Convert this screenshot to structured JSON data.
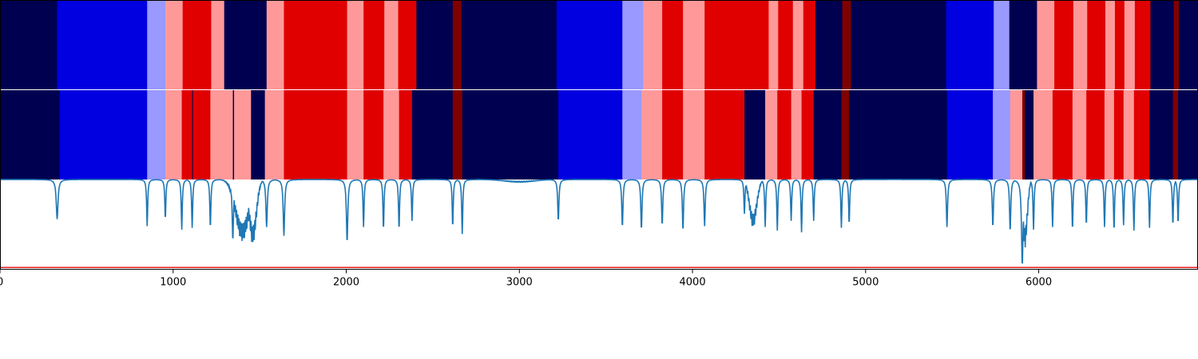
{
  "chart_data": {
    "type": "heatmap",
    "title": "",
    "xlabel": "",
    "ylabel": "",
    "xlim": [
      0,
      6920
    ],
    "grid": false,
    "legend": "none",
    "xticks": [
      0,
      1000,
      2000,
      3000,
      4000,
      5000,
      6000
    ],
    "colors": {
      "0": "#000050",
      "1": "#0000e0",
      "2": "#9999ff",
      "3": "#ff9999",
      "4": "#e00000",
      "5": "#800000"
    },
    "tracks": [
      {
        "segments": [
          [
            0,
            330,
            0
          ],
          [
            330,
            850,
            1
          ],
          [
            850,
            955,
            2
          ],
          [
            955,
            1055,
            3
          ],
          [
            1055,
            1220,
            4
          ],
          [
            1220,
            1295,
            3
          ],
          [
            1295,
            1540,
            0
          ],
          [
            1540,
            1640,
            3
          ],
          [
            1640,
            2005,
            4
          ],
          [
            2005,
            2100,
            3
          ],
          [
            2100,
            2220,
            4
          ],
          [
            2220,
            2300,
            3
          ],
          [
            2300,
            2405,
            4
          ],
          [
            2405,
            2615,
            0
          ],
          [
            2615,
            2665,
            5
          ],
          [
            2665,
            3215,
            0
          ],
          [
            3215,
            3595,
            1
          ],
          [
            3595,
            3715,
            2
          ],
          [
            3715,
            3825,
            3
          ],
          [
            3825,
            3945,
            4
          ],
          [
            3945,
            4070,
            3
          ],
          [
            4070,
            4440,
            4
          ],
          [
            4440,
            4495,
            3
          ],
          [
            4495,
            4580,
            4
          ],
          [
            4580,
            4640,
            3
          ],
          [
            4640,
            4710,
            4
          ],
          [
            4710,
            4865,
            0
          ],
          [
            4865,
            4915,
            5
          ],
          [
            4915,
            5465,
            0
          ],
          [
            5465,
            5740,
            1
          ],
          [
            5740,
            5830,
            2
          ],
          [
            5830,
            5990,
            0
          ],
          [
            5990,
            6090,
            3
          ],
          [
            6090,
            6200,
            4
          ],
          [
            6200,
            6280,
            3
          ],
          [
            6280,
            6385,
            4
          ],
          [
            6385,
            6440,
            3
          ],
          [
            6440,
            6495,
            4
          ],
          [
            6495,
            6555,
            3
          ],
          [
            6555,
            6645,
            4
          ],
          [
            6645,
            6780,
            0
          ],
          [
            6780,
            6810,
            5
          ],
          [
            6810,
            6920,
            0
          ]
        ]
      },
      {
        "segments": [
          [
            0,
            345,
            0
          ],
          [
            345,
            850,
            1
          ],
          [
            850,
            955,
            2
          ],
          [
            955,
            1050,
            3
          ],
          [
            1050,
            1110,
            4
          ],
          [
            1110,
            1115,
            0
          ],
          [
            1115,
            1215,
            4
          ],
          [
            1215,
            1345,
            3
          ],
          [
            1345,
            1352,
            0
          ],
          [
            1352,
            1450,
            3
          ],
          [
            1450,
            1530,
            0
          ],
          [
            1530,
            1640,
            3
          ],
          [
            1640,
            2005,
            4
          ],
          [
            2005,
            2100,
            3
          ],
          [
            2100,
            2215,
            4
          ],
          [
            2215,
            2305,
            3
          ],
          [
            2305,
            2380,
            4
          ],
          [
            2380,
            2615,
            0
          ],
          [
            2615,
            2670,
            5
          ],
          [
            2670,
            3225,
            0
          ],
          [
            3225,
            3595,
            1
          ],
          [
            3595,
            3705,
            2
          ],
          [
            3705,
            3825,
            3
          ],
          [
            3825,
            3945,
            4
          ],
          [
            3945,
            4070,
            3
          ],
          [
            4070,
            4300,
            4
          ],
          [
            4300,
            4420,
            0
          ],
          [
            4420,
            4490,
            3
          ],
          [
            4490,
            4570,
            4
          ],
          [
            4570,
            4630,
            3
          ],
          [
            4630,
            4700,
            4
          ],
          [
            4700,
            4860,
            0
          ],
          [
            4860,
            4905,
            5
          ],
          [
            4905,
            5470,
            0
          ],
          [
            5470,
            5735,
            1
          ],
          [
            5735,
            5835,
            2
          ],
          [
            5835,
            5905,
            3
          ],
          [
            5905,
            5920,
            5
          ],
          [
            5920,
            5970,
            0
          ],
          [
            5970,
            6080,
            3
          ],
          [
            6080,
            6195,
            4
          ],
          [
            6195,
            6275,
            3
          ],
          [
            6275,
            6380,
            4
          ],
          [
            6380,
            6435,
            3
          ],
          [
            6435,
            6490,
            4
          ],
          [
            6490,
            6550,
            3
          ],
          [
            6550,
            6640,
            4
          ],
          [
            6640,
            6775,
            0
          ],
          [
            6775,
            6805,
            5
          ],
          [
            6805,
            6920,
            0
          ]
        ]
      }
    ],
    "signal": {
      "color": "#1f77b4",
      "baseline": 1.0,
      "ylim": [
        -0.02,
        1.0
      ],
      "dips": [
        [
          330,
          0.55,
          10
        ],
        [
          850,
          0.47,
          6
        ],
        [
          955,
          0.55,
          6
        ],
        [
          1050,
          0.43,
          6
        ],
        [
          1110,
          0.45,
          6
        ],
        [
          1215,
          0.45,
          6
        ],
        [
          1345,
          0.31,
          8
        ],
        [
          1540,
          0.46,
          8
        ],
        [
          1640,
          0.36,
          8
        ],
        [
          2005,
          0.29,
          8
        ],
        [
          2100,
          0.46,
          6
        ],
        [
          2215,
          0.43,
          6
        ],
        [
          2305,
          0.43,
          6
        ],
        [
          2380,
          0.53,
          6
        ],
        [
          2615,
          0.46,
          6
        ],
        [
          2670,
          0.38,
          6
        ],
        [
          3225,
          0.53,
          7
        ],
        [
          3595,
          0.46,
          7
        ],
        [
          3705,
          0.43,
          7
        ],
        [
          3825,
          0.48,
          7
        ],
        [
          3945,
          0.42,
          7
        ],
        [
          4070,
          0.47,
          7
        ],
        [
          4300,
          0.61,
          6
        ],
        [
          4420,
          0.46,
          6
        ],
        [
          4490,
          0.42,
          6
        ],
        [
          4570,
          0.53,
          6
        ],
        [
          4630,
          0.4,
          6
        ],
        [
          4700,
          0.53,
          6
        ],
        [
          4860,
          0.45,
          6
        ],
        [
          4905,
          0.49,
          6
        ],
        [
          5470,
          0.46,
          7
        ],
        [
          5735,
          0.46,
          7
        ],
        [
          5835,
          0.41,
          7
        ],
        [
          5905,
          0.02,
          9
        ],
        [
          5970,
          0.43,
          6
        ],
        [
          6080,
          0.46,
          6
        ],
        [
          6195,
          0.43,
          6
        ],
        [
          6275,
          0.48,
          6
        ],
        [
          6380,
          0.46,
          6
        ],
        [
          6435,
          0.42,
          6
        ],
        [
          6490,
          0.48,
          6
        ],
        [
          6550,
          0.42,
          6
        ],
        [
          6640,
          0.45,
          6
        ],
        [
          6775,
          0.48,
          6
        ],
        [
          6805,
          0.5,
          6
        ]
      ],
      "bumps": [
        [
          1400,
          0.3,
          55
        ],
        [
          1460,
          0.26,
          30
        ],
        [
          4350,
          0.45,
          30
        ],
        [
          5920,
          0.22,
          20
        ],
        [
          3000,
          0.97,
          120
        ]
      ]
    },
    "threshold": {
      "value": 0.0,
      "color": "#e31a1c"
    }
  }
}
